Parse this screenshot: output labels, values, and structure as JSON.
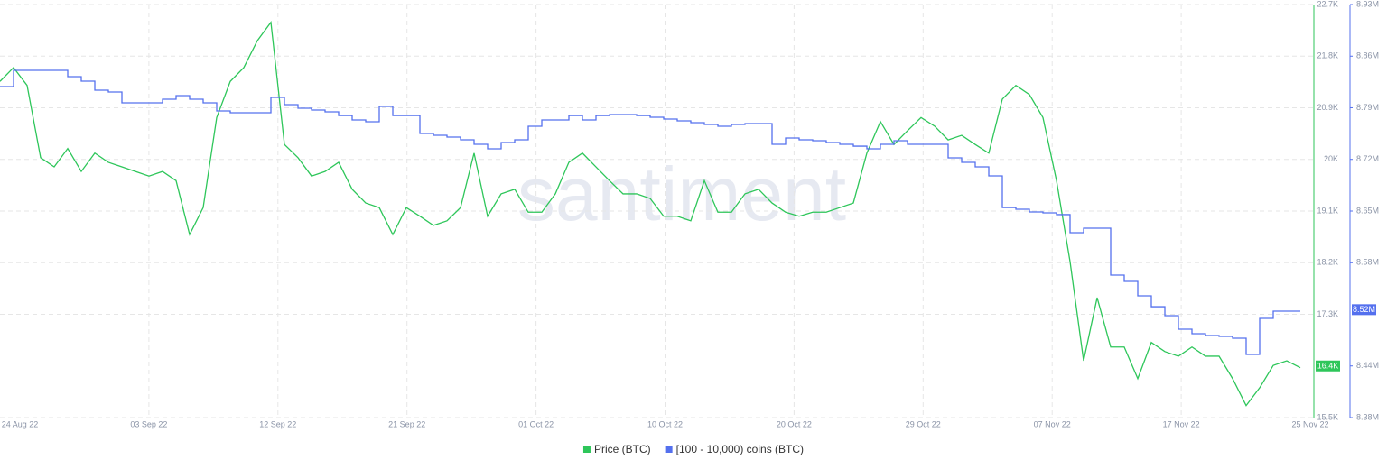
{
  "chart_data": {
    "type": "line",
    "watermark": "santiment",
    "x_labels": [
      "24 Aug 22",
      "03 Sep 22",
      "12 Sep 22",
      "21 Sep 22",
      "01 Oct 22",
      "10 Oct 22",
      "20 Oct 22",
      "29 Oct 22",
      "07 Nov 22",
      "17 Nov 22",
      "25 Nov 22"
    ],
    "ylim": [
      15500,
      22700
    ],
    "yticks": [
      {
        "value": 22700,
        "label": "22.7K"
      },
      {
        "value": 21800,
        "label": "21.8K"
      },
      {
        "value": 20900,
        "label": "20.9K"
      },
      {
        "value": 20000,
        "label": "20K"
      },
      {
        "value": 19100,
        "label": "19.1K"
      },
      {
        "value": 18200,
        "label": "18.2K"
      },
      {
        "value": 17300,
        "label": "17.3K"
      },
      {
        "value": 15500,
        "label": "15.5K"
      }
    ],
    "y2lim": [
      8375000,
      8930000
    ],
    "y2ticks": [
      {
        "value": 8930000,
        "label": "8.93M"
      },
      {
        "value": 8860600,
        "label": "8.86M"
      },
      {
        "value": 8791300,
        "label": "8.79M"
      },
      {
        "value": 8721900,
        "label": "8.72M"
      },
      {
        "value": 8652500,
        "label": "8.65M"
      },
      {
        "value": 8583100,
        "label": "8.58M"
      },
      {
        "value": 8444400,
        "label": "8.44M"
      },
      {
        "value": 8375000,
        "label": "8.38M"
      }
    ],
    "grid": true,
    "series": [
      {
        "name": "Price (BTC)",
        "color": "#2ec65a",
        "axis": "y",
        "current": {
          "value": 16400,
          "label": "16.4K"
        },
        "values": [
          21360,
          21600,
          21290,
          20030,
          19870,
          20190,
          19790,
          20110,
          19950,
          19870,
          19790,
          19710,
          19790,
          19630,
          18690,
          19160,
          20730,
          21360,
          21600,
          22070,
          22390,
          20260,
          20030,
          19710,
          19790,
          19950,
          19480,
          19240,
          19160,
          18690,
          19160,
          19010,
          18850,
          18930,
          19160,
          20110,
          19010,
          19400,
          19480,
          19080,
          19080,
          19400,
          19950,
          20110,
          19870,
          19630,
          19400,
          19400,
          19320,
          19010,
          19010,
          18930,
          19630,
          19080,
          19080,
          19400,
          19480,
          19240,
          19080,
          19010,
          19080,
          19080,
          19160,
          19240,
          20110,
          20660,
          20260,
          20500,
          20730,
          20580,
          20340,
          20420,
          20260,
          20110,
          21050,
          21290,
          21130,
          20730,
          19630,
          18220,
          16490,
          17590,
          16730,
          16730,
          16180,
          16810,
          16650,
          16570,
          16730,
          16570,
          16570,
          16180,
          15710,
          16020,
          16410,
          16490,
          16370
        ]
      },
      {
        "name": "[100 - 10,000) coins (BTC)",
        "color": "#5470ee",
        "axis": "y2",
        "step": true,
        "current": {
          "value": 8520000,
          "label": "8.52M"
        },
        "values": [
          8819700,
          8841500,
          8841500,
          8841500,
          8841500,
          8833100,
          8827000,
          8814900,
          8812500,
          8797900,
          8797900,
          8797900,
          8802800,
          8807600,
          8802800,
          8797900,
          8787000,
          8784600,
          8784600,
          8784600,
          8805200,
          8795500,
          8790600,
          8788200,
          8785800,
          8780900,
          8774900,
          8772500,
          8793100,
          8780900,
          8780900,
          8756700,
          8754300,
          8751900,
          8748200,
          8742200,
          8736100,
          8744600,
          8748200,
          8766400,
          8774900,
          8774900,
          8780900,
          8774900,
          8780900,
          8782200,
          8782200,
          8780900,
          8778500,
          8776100,
          8773700,
          8771300,
          8768800,
          8766400,
          8768800,
          8770000,
          8770000,
          8742200,
          8750700,
          8748200,
          8747000,
          8744600,
          8742200,
          8739700,
          8736100,
          8742200,
          8747000,
          8742200,
          8742200,
          8742200,
          8724000,
          8717900,
          8711900,
          8699800,
          8657300,
          8654900,
          8651300,
          8650100,
          8647700,
          8623400,
          8629500,
          8629500,
          8566500,
          8558000,
          8538600,
          8524000,
          8511900,
          8493800,
          8487700,
          8485300,
          8484100,
          8481600,
          8459800,
          8508300,
          8518000,
          8518000,
          8518000
        ]
      }
    ]
  }
}
